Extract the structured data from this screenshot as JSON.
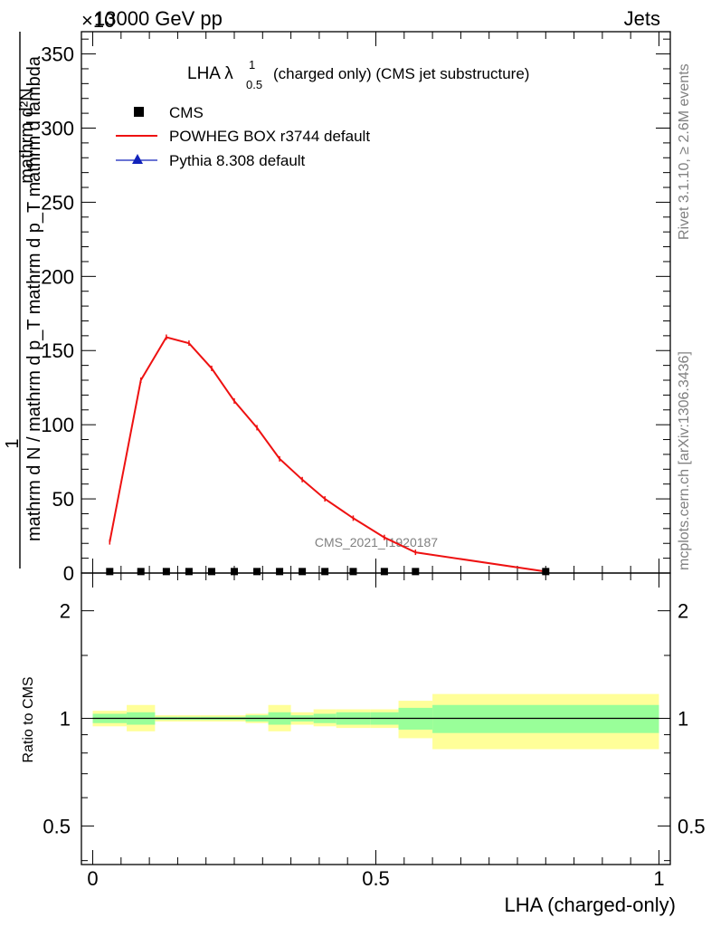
{
  "header": {
    "left_fragment": "×10",
    "energy": "13000 GeV pp",
    "process": "Jets"
  },
  "main_plot": {
    "title_main": "LHA λ",
    "title_sup": "1",
    "title_sub": "0.5",
    "title_rest": "(charged only) (CMS jet substructure)",
    "ylabel_numerator": "1",
    "ylabel_denominator": "mathrm d N / mathrm d p_T mathrm d p_T mathrm d lambda",
    "ylabel_top": "mathrm d²N",
    "watermark": "CMS_2021_I1920187"
  },
  "ratio_plot": {
    "ylabel": "Ratio to CMS",
    "xlabel": "LHA (charged-only)"
  },
  "side_labels": {
    "rivet": "Rivet 3.1.10, ≥ 2.6M events",
    "mcplots": "mcplots.cern.ch [arXiv:1306.3436]"
  },
  "legend": {
    "entries": [
      "CMS",
      "POWHEG BOX r3744 default",
      "Pythia 8.308 default"
    ]
  },
  "colors": {
    "cms": "#000000",
    "powheg": "#ee1111",
    "pythia": "#1122bb",
    "band_inner": "#99ff99",
    "band_outer": "#ffff99"
  },
  "chart_data": {
    "type": "line",
    "x_range": [
      -0.02,
      1.02
    ],
    "main_ylim": [
      0,
      365
    ],
    "main_yticks": [
      0,
      50,
      100,
      150,
      200,
      250,
      300,
      350
    ],
    "main_ytick_labels": [
      "0",
      "50",
      "100",
      "150",
      "200",
      "250",
      "300",
      "350"
    ],
    "ratio_ylim": [
      0.39,
      2.55
    ],
    "ratio_log": true,
    "ratio_yticks": [
      0.5,
      1,
      2
    ],
    "ratio_ytick_labels": [
      "0.5",
      "1",
      "2"
    ],
    "xticks": [
      0,
      0.5,
      1
    ],
    "xtick_labels": [
      "0",
      "0.5",
      "1"
    ],
    "bin_edges": [
      0,
      0.06,
      0.11,
      0.15,
      0.19,
      0.23,
      0.27,
      0.31,
      0.35,
      0.39,
      0.43,
      0.49,
      0.54,
      0.6,
      1.0
    ],
    "series": [
      {
        "name": "CMS",
        "x": [
          0.03,
          0.085,
          0.13,
          0.17,
          0.21,
          0.25,
          0.29,
          0.33,
          0.37,
          0.41,
          0.46,
          0.515,
          0.57,
          0.8
        ],
        "y": [
          1,
          1,
          1,
          1,
          1,
          1,
          1,
          1,
          1,
          1,
          1,
          1,
          1,
          1
        ]
      },
      {
        "name": "POWHEG BOX r3744 default",
        "x": [
          0.03,
          0.085,
          0.13,
          0.17,
          0.21,
          0.25,
          0.29,
          0.33,
          0.37,
          0.41,
          0.46,
          0.515,
          0.57,
          0.8
        ],
        "y": [
          21,
          130,
          159,
          155,
          138,
          116,
          98,
          77,
          63,
          50,
          37,
          24,
          14,
          1
        ]
      }
    ],
    "ratio_band_inner": {
      "low": [
        0.97,
        0.96,
        0.99,
        0.99,
        0.99,
        0.99,
        0.98,
        0.96,
        0.98,
        0.97,
        0.96,
        0.96,
        0.93,
        0.91
      ],
      "high": [
        1.03,
        1.04,
        1.01,
        1.01,
        1.01,
        1.01,
        1.02,
        1.04,
        1.02,
        1.03,
        1.04,
        1.04,
        1.07,
        1.09
      ]
    },
    "ratio_band_outer": {
      "low": [
        0.95,
        0.92,
        0.98,
        0.98,
        0.98,
        0.98,
        0.97,
        0.92,
        0.96,
        0.95,
        0.94,
        0.94,
        0.88,
        0.82
      ],
      "high": [
        1.05,
        1.09,
        1.02,
        1.02,
        1.02,
        1.02,
        1.03,
        1.09,
        1.04,
        1.06,
        1.06,
        1.06,
        1.12,
        1.17
      ]
    }
  }
}
